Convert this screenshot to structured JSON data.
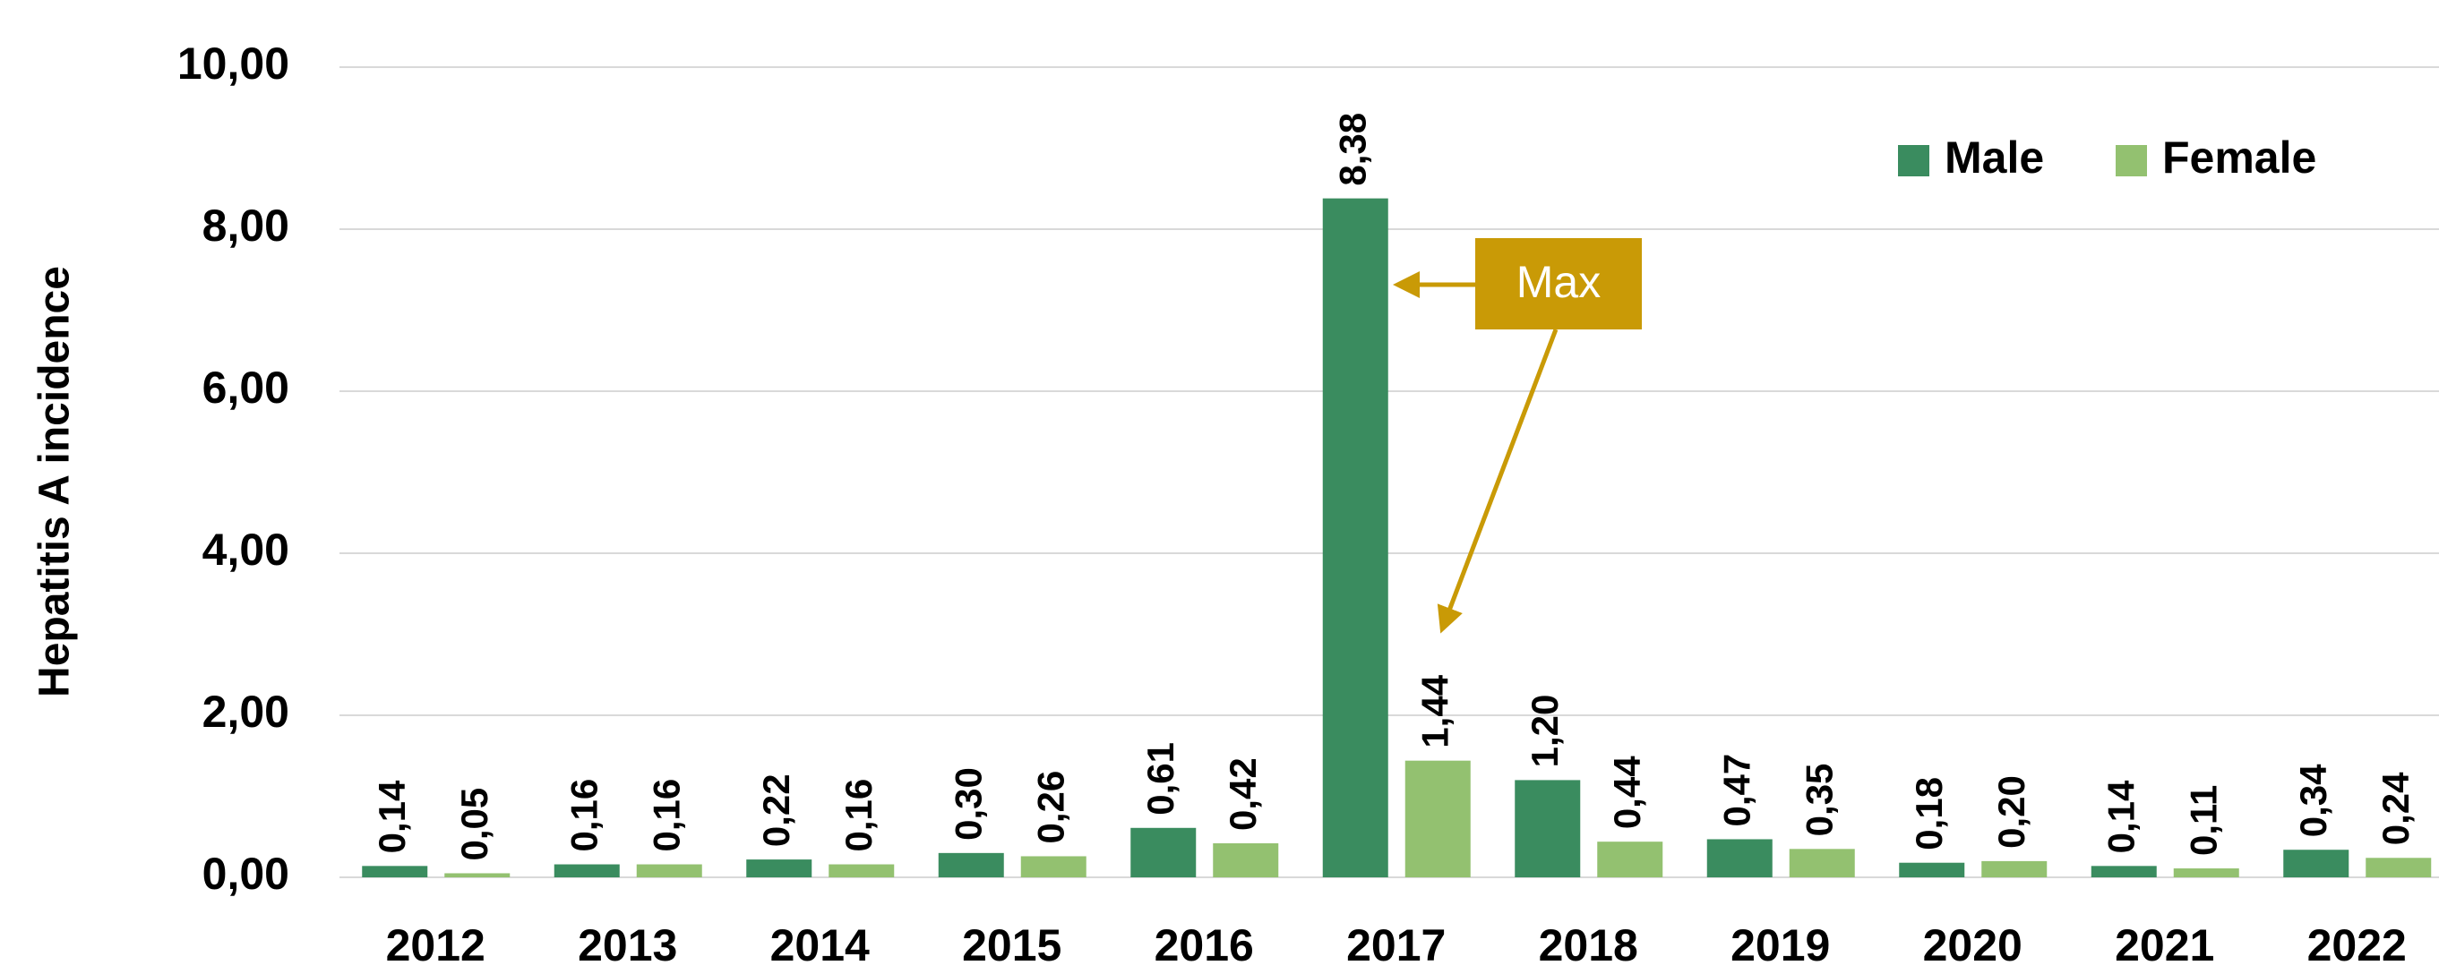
{
  "chart_data": {
    "type": "bar",
    "y_label": "Hepatitis A incidence",
    "categories": [
      "2012",
      "2013",
      "2014",
      "2015",
      "2016",
      "2017",
      "2018",
      "2019",
      "2020",
      "2021",
      "2022"
    ],
    "series": [
      {
        "name": "Male",
        "color": "#3a8c5f",
        "values": [
          0.14,
          0.16,
          0.22,
          0.3,
          0.61,
          8.38,
          1.2,
          0.47,
          0.18,
          0.14,
          0.34
        ],
        "value_labels": [
          "0,14",
          "0,16",
          "0,22",
          "0,30",
          "0,61",
          "8,38",
          "1,20",
          "0,47",
          "0,18",
          "0,14",
          "0,34"
        ]
      },
      {
        "name": "Female",
        "color": "#93c170",
        "values": [
          0.05,
          0.16,
          0.16,
          0.26,
          0.42,
          1.44,
          0.44,
          0.35,
          0.2,
          0.11,
          0.24
        ],
        "value_labels": [
          "0,05",
          "0,16",
          "0,16",
          "0,26",
          "0,42",
          "1,44",
          "0,44",
          "0,35",
          "0,20",
          "0,11",
          "0,24"
        ]
      }
    ],
    "ylim": [
      0,
      10
    ],
    "yticks": [
      {
        "value": 0,
        "label": "0,00"
      },
      {
        "value": 2,
        "label": "2,00"
      },
      {
        "value": 4,
        "label": "4,00"
      },
      {
        "value": 6,
        "label": "6,00"
      },
      {
        "value": 8,
        "label": "8,00"
      },
      {
        "value": 10,
        "label": "10,00"
      }
    ],
    "grid": true,
    "legend": "upper right",
    "annotation": {
      "text": "Max",
      "color": "#c99a06"
    }
  }
}
